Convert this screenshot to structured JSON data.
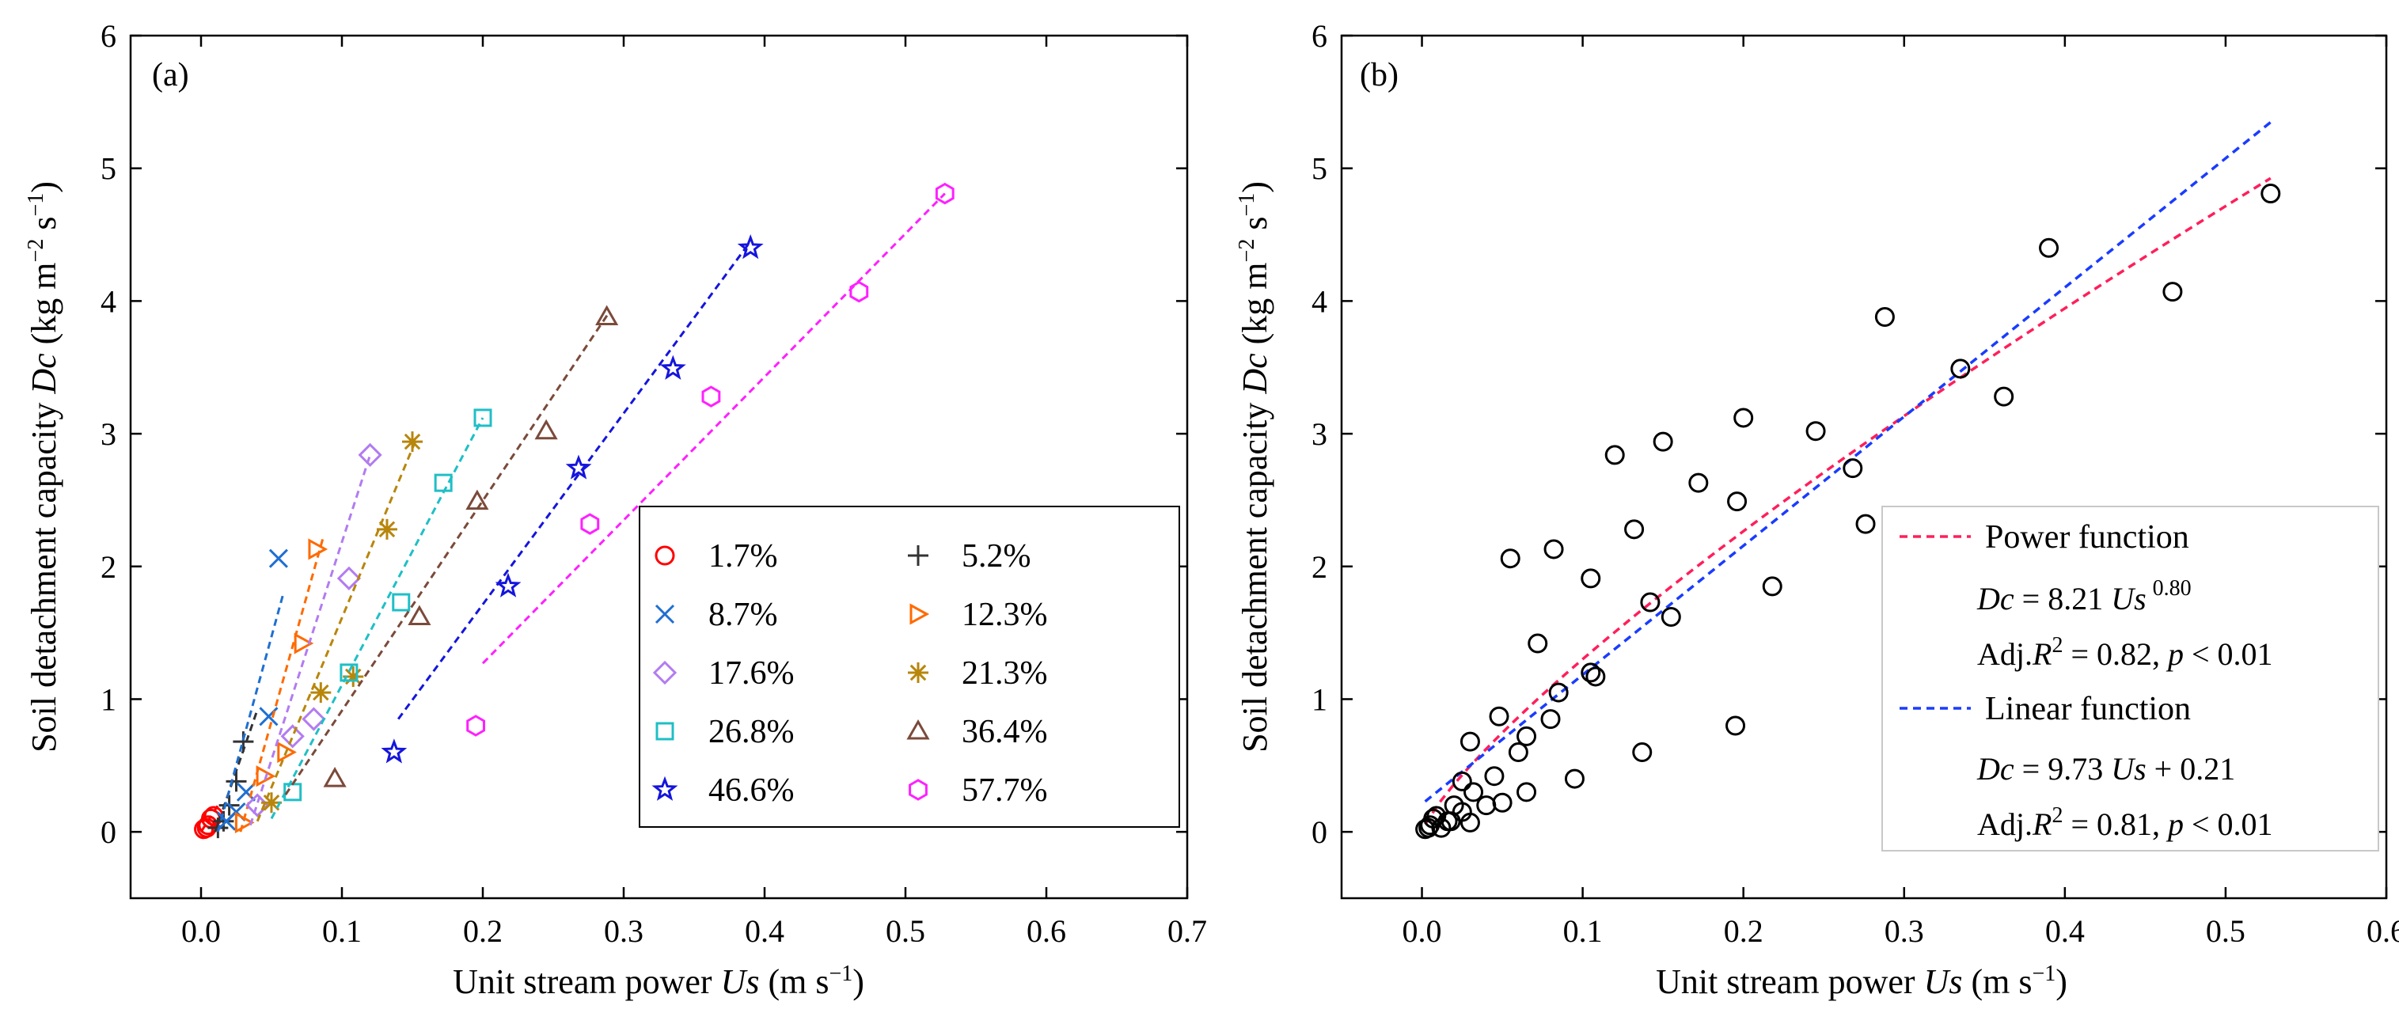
{
  "chart_data": [
    {
      "type": "scatter",
      "panel_label": "(a)",
      "xlabel_prefix": "Unit stream power ",
      "xlabel_var": "Us",
      "xlabel_unit": " (m s",
      "xlabel_unit_exp": "−1",
      "xlabel_close": ")",
      "ylabel_prefix": "Soil detachment capacity ",
      "ylabel_var": "Dc",
      "ylabel_unit": " (kg m",
      "ylabel_unit_exp1": "−2",
      "ylabel_unit_mid": " s",
      "ylabel_unit_exp2": "−1",
      "ylabel_close": ")",
      "xlim": [
        -0.05,
        0.7
      ],
      "ylim": [
        -0.5,
        6
      ],
      "xticks": [
        0.0,
        0.1,
        0.2,
        0.3,
        0.4,
        0.5,
        0.6,
        0.7
      ],
      "xtick_labels": [
        "0.0",
        "0.1",
        "0.2",
        "0.3",
        "0.4",
        "0.5",
        "0.6",
        "0.7"
      ],
      "yticks": [
        0,
        1,
        2,
        3,
        4,
        5,
        6
      ],
      "ytick_labels": [
        "0",
        "1",
        "2",
        "3",
        "4",
        "5",
        "6"
      ],
      "legend_position": "bottom-right",
      "series": [
        {
          "name": "1.7%",
          "marker": "circle",
          "color": "#ff0000",
          "x": [
            0.002,
            0.004,
            0.005,
            0.007,
            0.009
          ],
          "y": [
            0.02,
            0.03,
            0.05,
            0.1,
            0.12
          ],
          "fit": [
            [
              0.0,
              0.0
            ],
            [
              0.012,
              0.2
            ]
          ]
        },
        {
          "name": "5.2%",
          "marker": "plus",
          "color": "#333333",
          "x": [
            0.012,
            0.016,
            0.02,
            0.025,
            0.03
          ],
          "y": [
            0.03,
            0.08,
            0.2,
            0.38,
            0.68
          ],
          "fit": [
            [
              0.01,
              0.0
            ],
            [
              0.04,
              0.92
            ]
          ]
        },
        {
          "name": "8.7%",
          "marker": "x",
          "color": "#1f6fd1",
          "x": [
            0.018,
            0.025,
            0.032,
            0.048,
            0.055
          ],
          "y": [
            0.08,
            0.15,
            0.3,
            0.87,
            2.06
          ],
          "fit": [
            [
              0.012,
              0.0
            ],
            [
              0.058,
              1.78
            ]
          ]
        },
        {
          "name": "12.3%",
          "marker": "triangle-right",
          "color": "#ff6a00",
          "x": [
            0.03,
            0.045,
            0.06,
            0.072,
            0.082
          ],
          "y": [
            0.07,
            0.42,
            0.6,
            1.42,
            2.13
          ],
          "fit": [
            [
              0.028,
              0.0
            ],
            [
              0.087,
              2.23
            ]
          ]
        },
        {
          "name": "17.6%",
          "marker": "diamond",
          "color": "#b27cf0",
          "x": [
            0.04,
            0.065,
            0.08,
            0.105,
            0.12
          ],
          "y": [
            0.2,
            0.72,
            0.85,
            1.91,
            2.84
          ],
          "fit": [
            [
              0.035,
              0.05
            ],
            [
              0.12,
              2.84
            ]
          ]
        },
        {
          "name": "21.3%",
          "marker": "asterisk",
          "color": "#b8860b",
          "x": [
            0.05,
            0.085,
            0.108,
            0.132,
            0.15
          ],
          "y": [
            0.22,
            1.05,
            1.17,
            2.28,
            2.94
          ],
          "fit": [
            [
              0.04,
              0.08
            ],
            [
              0.152,
              2.94
            ]
          ]
        },
        {
          "name": "26.8%",
          "marker": "square",
          "color": "#1fbfc6",
          "x": [
            0.065,
            0.105,
            0.142,
            0.172,
            0.2
          ],
          "y": [
            0.3,
            1.2,
            1.73,
            2.63,
            3.12
          ],
          "fit": [
            [
              0.05,
              0.1
            ],
            [
              0.2,
              3.12
            ]
          ]
        },
        {
          "name": "36.4%",
          "marker": "triangle-up",
          "color": "#7b4a3a",
          "x": [
            0.095,
            0.155,
            0.196,
            0.245,
            0.288
          ],
          "y": [
            0.4,
            1.62,
            2.49,
            3.02,
            3.88
          ],
          "fit": [
            [
              0.06,
              0.28
            ],
            [
              0.29,
              3.92
            ]
          ]
        },
        {
          "name": "46.6%",
          "marker": "star",
          "color": "#1515dd",
          "x": [
            0.137,
            0.218,
            0.268,
            0.335,
            0.39
          ],
          "y": [
            0.6,
            1.85,
            2.74,
            3.49,
            4.4
          ],
          "fit": [
            [
              0.14,
              0.85
            ],
            [
              0.39,
              4.45
            ]
          ]
        },
        {
          "name": "57.7%",
          "marker": "hexagon",
          "color": "#ff20ff",
          "x": [
            0.195,
            0.276,
            0.362,
            0.467,
            0.528
          ],
          "y": [
            0.8,
            2.32,
            3.28,
            4.07,
            4.81
          ],
          "fit": [
            [
              0.2,
              1.27
            ],
            [
              0.528,
              4.81
            ]
          ]
        }
      ]
    },
    {
      "type": "scatter",
      "panel_label": "(b)",
      "xlabel_prefix": "Unit stream power ",
      "xlabel_var": "Us",
      "xlabel_unit": " (m s",
      "xlabel_unit_exp": "−1",
      "xlabel_close": ")",
      "ylabel_prefix": "Soil detachment capacity ",
      "ylabel_var": "Dc",
      "ylabel_unit": " (kg m",
      "ylabel_unit_exp1": "−2",
      "ylabel_unit_mid": " s",
      "ylabel_unit_exp2": "−1",
      "ylabel_close": ")",
      "xlim": [
        -0.05,
        0.6
      ],
      "ylim": [
        -0.5,
        6
      ],
      "xticks": [
        0.0,
        0.1,
        0.2,
        0.3,
        0.4,
        0.5,
        0.6
      ],
      "xtick_labels": [
        "0.0",
        "0.1",
        "0.2",
        "0.3",
        "0.4",
        "0.5",
        "0.6"
      ],
      "yticks": [
        0,
        1,
        2,
        3,
        4,
        5,
        6
      ],
      "ytick_labels": [
        "0",
        "1",
        "2",
        "3",
        "4",
        "5",
        "6"
      ],
      "legend_position": "bottom-right",
      "points": {
        "marker": "circle-open",
        "color": "#000000",
        "x": [
          0.002,
          0.004,
          0.005,
          0.007,
          0.009,
          0.012,
          0.016,
          0.02,
          0.025,
          0.03,
          0.018,
          0.025,
          0.032,
          0.048,
          0.055,
          0.03,
          0.045,
          0.06,
          0.072,
          0.082,
          0.04,
          0.065,
          0.08,
          0.105,
          0.12,
          0.05,
          0.085,
          0.108,
          0.132,
          0.15,
          0.065,
          0.105,
          0.142,
          0.172,
          0.2,
          0.095,
          0.155,
          0.196,
          0.245,
          0.288,
          0.137,
          0.218,
          0.268,
          0.335,
          0.39,
          0.195,
          0.276,
          0.362,
          0.467,
          0.528
        ],
        "y": [
          0.02,
          0.03,
          0.05,
          0.1,
          0.12,
          0.03,
          0.08,
          0.2,
          0.38,
          0.68,
          0.08,
          0.15,
          0.3,
          0.87,
          2.06,
          0.07,
          0.42,
          0.6,
          1.42,
          2.13,
          0.2,
          0.72,
          0.85,
          1.91,
          2.84,
          0.22,
          1.05,
          1.17,
          2.28,
          2.94,
          0.3,
          1.2,
          1.73,
          2.63,
          3.12,
          0.4,
          1.62,
          2.49,
          3.02,
          3.88,
          0.6,
          1.85,
          2.74,
          3.49,
          4.4,
          0.8,
          2.32,
          3.28,
          4.07,
          4.81
        ]
      },
      "fits": [
        {
          "name": "Power function",
          "color": "#ff1f5a",
          "form": "power",
          "a": 8.21,
          "b": 0.8,
          "x_range": [
            0.002,
            0.528
          ],
          "eq_lhs": "Dc",
          "eq_mid": " = 8.21 ",
          "eq_var": "Us",
          "eq_exp": "0.80",
          "stat_prefix": "Adj.",
          "stat_r": "R",
          "stat_r_exp": "2",
          "stat_value": " = 0.82,  ",
          "stat_p": "p",
          "stat_p_value": " < 0.01"
        },
        {
          "name": "Linear function",
          "color": "#1a3cff",
          "form": "linear",
          "a": 9.73,
          "b": 0.21,
          "x_range": [
            0.002,
            0.528
          ],
          "eq_lhs": "Dc",
          "eq_mid": " = 9.73 ",
          "eq_var": "Us",
          "eq_tail": " + 0.21",
          "stat_prefix": "Adj.",
          "stat_r": "R",
          "stat_r_exp": "2",
          "stat_value": " = 0.81,  ",
          "stat_p": "p",
          "stat_p_value": " < 0.01"
        }
      ]
    }
  ]
}
